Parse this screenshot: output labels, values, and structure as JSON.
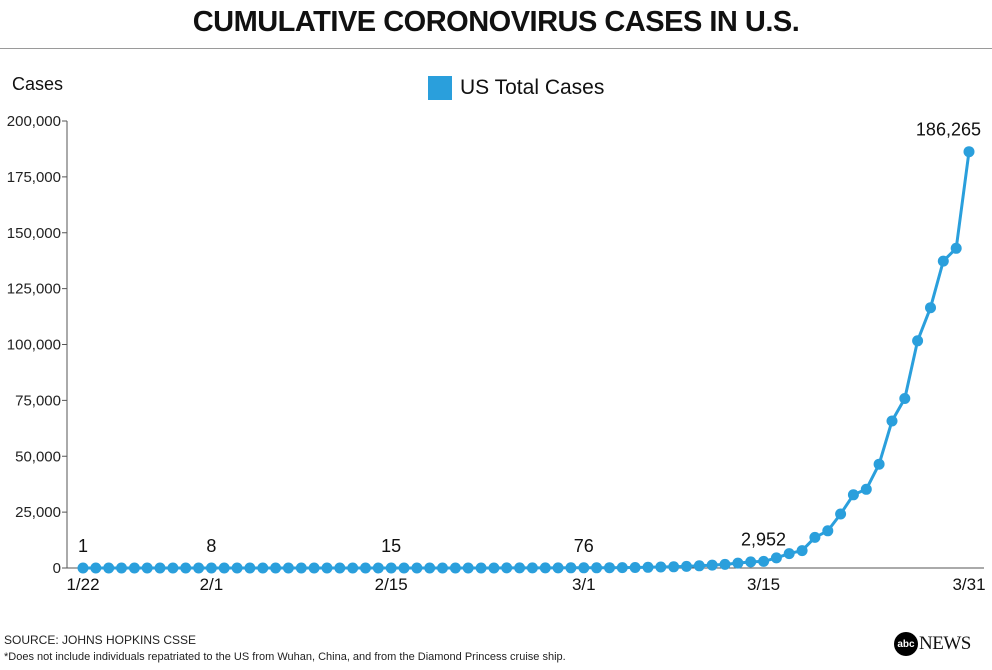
{
  "chart_data": {
    "type": "line",
    "title": "CUMULATIVE CORONOVIRUS CASES IN U.S.",
    "ylabel": "Cases",
    "xlabel": "",
    "legend": "top-center",
    "ylim": [
      0,
      200000
    ],
    "yticks": [
      0,
      25000,
      50000,
      75000,
      100000,
      125000,
      150000,
      175000,
      200000
    ],
    "ytick_labels": [
      "0",
      "25,000",
      "50,000",
      "75,000",
      "100,000",
      "125,000",
      "150,000",
      "175,000",
      "200,000"
    ],
    "x_tick_labels": [
      {
        "index": 0,
        "label": "1/22"
      },
      {
        "index": 10,
        "label": "2/1"
      },
      {
        "index": 24,
        "label": "2/15"
      },
      {
        "index": 39,
        "label": "3/1"
      },
      {
        "index": 53,
        "label": "3/15"
      },
      {
        "index": 69,
        "label": "3/31"
      }
    ],
    "annotations": [
      {
        "index": 0,
        "label": "1"
      },
      {
        "index": 10,
        "label": "8"
      },
      {
        "index": 24,
        "label": "15"
      },
      {
        "index": 39,
        "label": "76"
      },
      {
        "index": 53,
        "label": "2,952"
      },
      {
        "index": 69,
        "label": "186,265"
      }
    ],
    "series": [
      {
        "name": "US Total Cases",
        "color": "#2a9fdc",
        "dates": [
          "1/22",
          "1/23",
          "1/24",
          "1/25",
          "1/26",
          "1/27",
          "1/28",
          "1/29",
          "1/30",
          "1/31",
          "2/1",
          "2/2",
          "2/3",
          "2/4",
          "2/5",
          "2/6",
          "2/7",
          "2/8",
          "2/9",
          "2/10",
          "2/11",
          "2/12",
          "2/13",
          "2/14",
          "2/15",
          "2/16",
          "2/17",
          "2/18",
          "2/19",
          "2/20",
          "2/21",
          "2/22",
          "2/23",
          "2/24",
          "2/25",
          "2/26",
          "2/27",
          "2/28",
          "2/29",
          "3/1",
          "3/2",
          "3/3",
          "3/4",
          "3/5",
          "3/6",
          "3/7",
          "3/8",
          "3/9",
          "3/10",
          "3/11",
          "3/12",
          "3/13",
          "3/14",
          "3/15",
          "3/16",
          "3/17",
          "3/18",
          "3/19",
          "3/20",
          "3/21",
          "3/22",
          "3/23",
          "3/24",
          "3/25",
          "3/26",
          "3/27",
          "3/28",
          "3/29",
          "3/30",
          "3/31"
        ],
        "values": [
          1,
          1,
          2,
          2,
          5,
          5,
          5,
          5,
          5,
          6,
          8,
          8,
          11,
          11,
          11,
          12,
          12,
          12,
          12,
          12,
          13,
          13,
          14,
          14,
          15,
          15,
          15,
          15,
          15,
          15,
          15,
          15,
          15,
          51,
          51,
          57,
          58,
          60,
          68,
          76,
          100,
          124,
          158,
          221,
          319,
          435,
          541,
          704,
          994,
          1301,
          1630,
          2183,
          2726,
          2952,
          4507,
          6421,
          7786,
          13680,
          16638,
          24148,
          32764,
          35206,
          46450,
          65778,
          75833,
          101657,
          116448,
          137294,
          143055,
          186265
        ]
      }
    ]
  },
  "source_text": "SOURCE: JOHNS HOPKINS CSSE",
  "note_text": "*Does not include individuals repatriated to the US from Wuhan, China, and from the Diamond Princess cruise ship.",
  "logo": {
    "circle_text": "abc",
    "text": "NEWS"
  }
}
